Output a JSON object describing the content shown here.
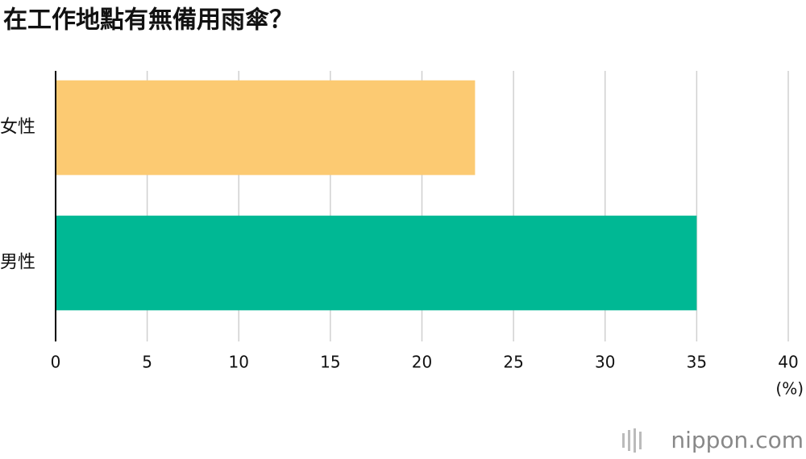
{
  "chart_data": {
    "type": "hbar",
    "title": "在工作地點有無備用雨傘？",
    "categories": [
      "女性",
      "男性"
    ],
    "values": [
      22.9,
      35
    ],
    "colors": [
      "#fcca72",
      "#00b894"
    ],
    "xlim": [
      0,
      40
    ],
    "xticks": [
      0,
      5,
      10,
      15,
      20,
      25,
      30,
      35,
      40
    ],
    "x_unit": "(%)",
    "grid": true,
    "source": "nippon.com"
  }
}
